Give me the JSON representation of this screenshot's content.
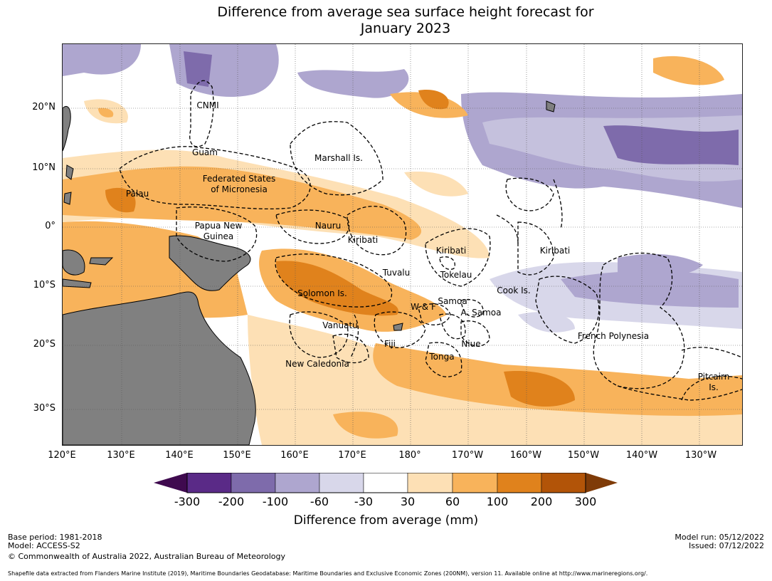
{
  "title_line1": "Difference from average sea surface height forecast for",
  "title_line2": "January 2023",
  "lat_labels": [
    "20°N",
    "10°N",
    "0°",
    "10°S",
    "20°S",
    "30°S"
  ],
  "lon_labels": [
    "120°E",
    "130°E",
    "140°E",
    "150°E",
    "160°E",
    "170°E",
    "180°",
    "170°W",
    "160°W",
    "150°W",
    "140°W",
    "130°W"
  ],
  "regions": {
    "cnmi": "CNMI",
    "guam": "Guam",
    "marshall": "Marshall Is.",
    "fsm1": "Federated States",
    "fsm2": "of Micronesia",
    "palau": "Palau",
    "png1": "Papua New",
    "png2": "Guinea",
    "nauru": "Nauru",
    "kiribati_w": "Kiribati",
    "kiribati_c": "Kiribati",
    "kiribati_e": "Kiribati",
    "tuvalu": "Tuvalu",
    "tokelau": "Tokelau",
    "solomon": "Solomon Is.",
    "cook": "Cook Is.",
    "wf": "W & F",
    "samoa": "Samoa",
    "asamoa": "A. Samoa",
    "vanuatu": "Vanuatu",
    "fiji": "Fiji",
    "niue": "Niue",
    "tonga": "Tonga",
    "newcal": "New Caledonia",
    "frpoly": "French Polynesia",
    "pitcairn1": "Pitcairn",
    "pitcairn2": "Is."
  },
  "colorbar": {
    "ticks": [
      "-300",
      "-200",
      "-100",
      "-60",
      "-30",
      "30",
      "60",
      "100",
      "200",
      "300"
    ],
    "colors": [
      "#3f0a4f",
      "#5a2a87",
      "#7e6bab",
      "#aea6cf",
      "#d8d7ea",
      "#ffffff",
      "#fde0b5",
      "#f8b35b",
      "#e0821c",
      "#b25408",
      "#7f3b08"
    ],
    "title": "Difference from average (mm)"
  },
  "colors": {
    "land": "#808080",
    "boundary": "#000000"
  },
  "footer": {
    "base_period": "Base period: 1981-2018",
    "model": "Model: ACCESS-S2",
    "copyright": "© Commonwealth of Australia 2022, Australian Bureau of Meteorology",
    "model_run": "Model run: 05/12/2022",
    "issued": "Issued: 07/12/2022",
    "shapefile": "Shapefile data extracted from Flanders Marine Institute (2019), Maritime Boundaries Geodatabase: Maritime Boundaries and Exclusive Economic Zones (200NM), version 11. Available online at http://www.marineregions.org/."
  }
}
